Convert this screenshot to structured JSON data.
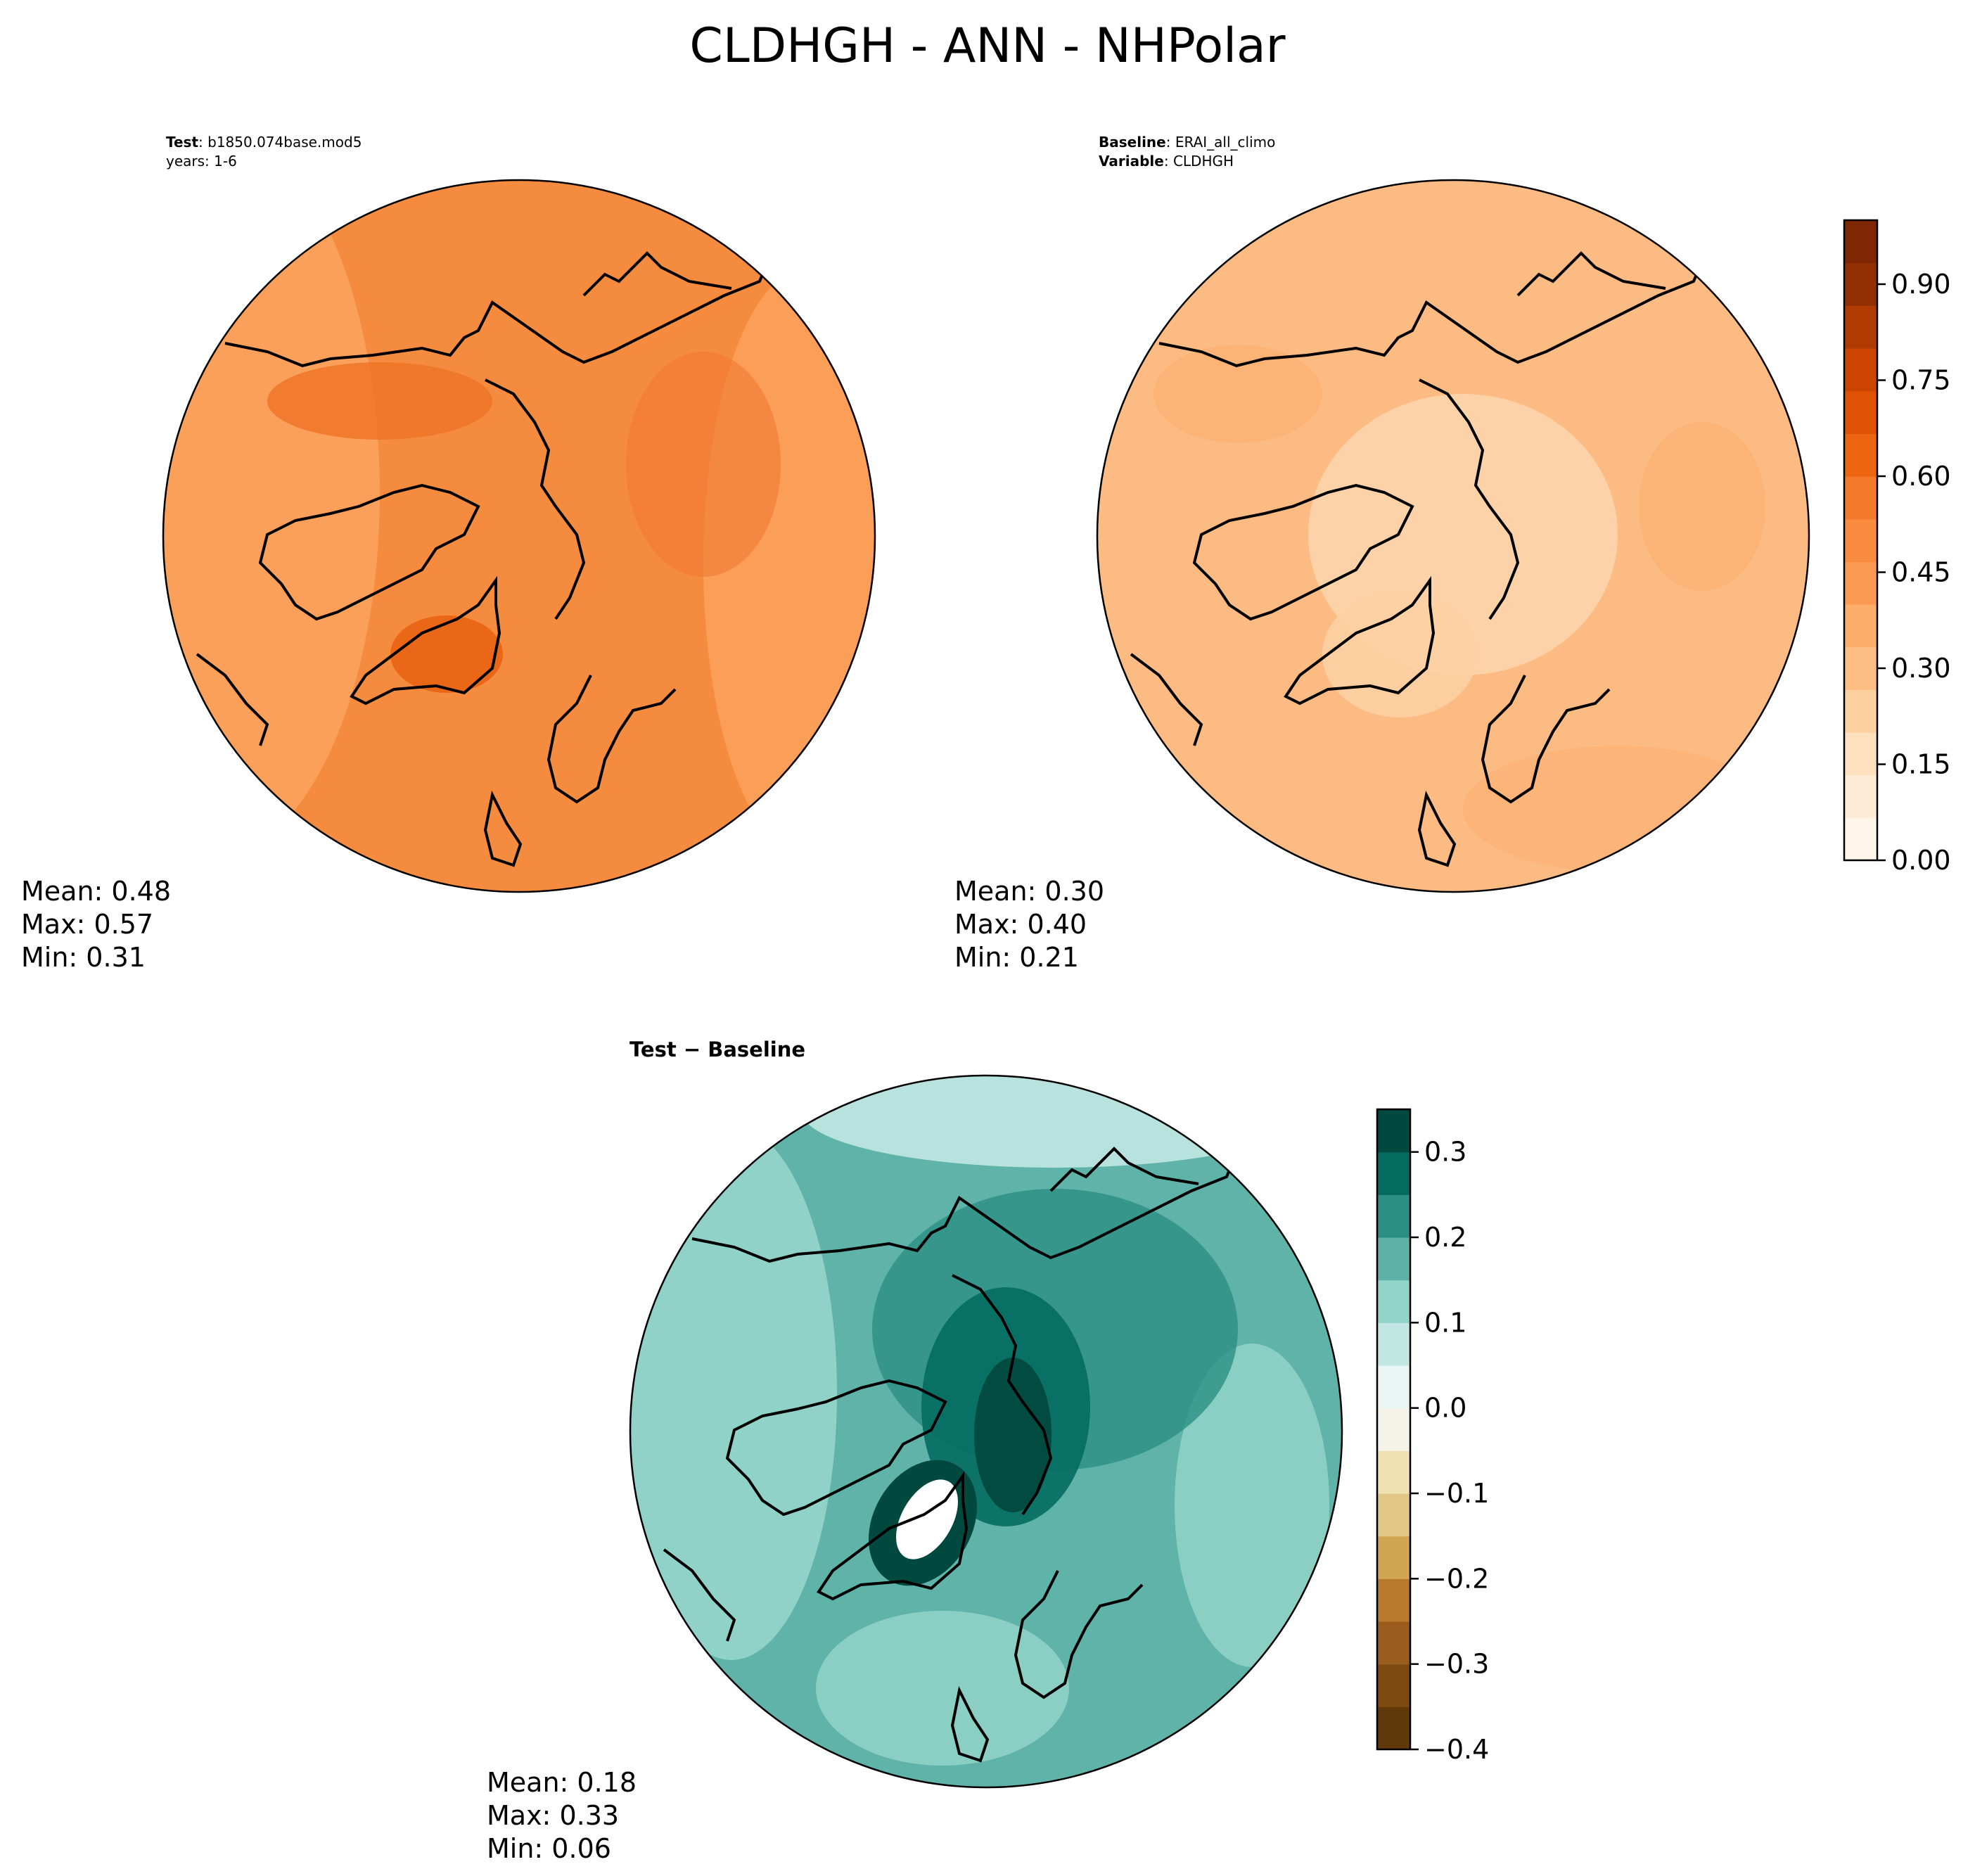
{
  "figure": {
    "title": "CLDHGH - ANN - NHPolar"
  },
  "panels": {
    "test": {
      "label": "Test",
      "sep": ": ",
      "name": "b1850.074base.mod5",
      "years": "years: 1-6",
      "mean": "Mean:  0.48",
      "max": "Max:  0.57",
      "min": "Min:  0.31",
      "fill_color": "#f58b3f"
    },
    "baseline": {
      "label": "Baseline",
      "sep": ": ",
      "name": "ERAI_all_climo",
      "var_label": "Variable",
      "var_name": "CLDHGH",
      "mean": "Mean:  0.30",
      "max": "Max:  0.40",
      "min": "Min:  0.21",
      "fill_color": "#fdbb84"
    },
    "diff": {
      "title_a": "Test",
      "title_op": " − ",
      "title_b": "Baseline",
      "mean": "Mean:  0.18",
      "max": "Max:  0.33",
      "min": "Min:  0.06",
      "fill_color": "#5fb3a8"
    }
  },
  "chart_data": [
    {
      "type": "heatmap",
      "title": "Test",
      "projection": "north polar stereographic",
      "variable": "CLDHGH",
      "stats": {
        "mean": 0.48,
        "max": 0.57,
        "min": 0.31
      }
    },
    {
      "type": "heatmap",
      "title": "Baseline",
      "projection": "north polar stereographic",
      "variable": "CLDHGH",
      "stats": {
        "mean": 0.3,
        "max": 0.4,
        "min": 0.21
      },
      "colorbar": {
        "range": [
          0.0,
          1.0
        ],
        "ticks": [
          0.0,
          0.15,
          0.3,
          0.45,
          0.6,
          0.75,
          0.9
        ],
        "tick_labels": [
          "0.00",
          "0.15",
          "0.30",
          "0.45",
          "0.60",
          "0.75",
          "0.90"
        ],
        "colors": [
          "#fff5eb",
          "#feebd6",
          "#fee0bf",
          "#fdd0a2",
          "#fdbe84",
          "#fdae6b",
          "#fd9a52",
          "#f98b3e",
          "#f4792a",
          "#ee6511",
          "#e05206",
          "#cc4402",
          "#b03b02",
          "#923003",
          "#7f2704"
        ]
      }
    },
    {
      "type": "heatmap",
      "title": "Test − Baseline",
      "projection": "north polar stereographic",
      "variable": "CLDHGH",
      "stats": {
        "mean": 0.18,
        "max": 0.33,
        "min": 0.06
      },
      "colorbar": {
        "range": [
          -0.4,
          0.35
        ],
        "ticks": [
          -0.4,
          -0.3,
          -0.2,
          -0.1,
          0.0,
          0.1,
          0.2,
          0.3
        ],
        "tick_labels": [
          "−0.4",
          "−0.3",
          "−0.2",
          "−0.1",
          "0.0",
          "0.1",
          "0.2",
          "0.3"
        ],
        "colors": [
          "#613a0c",
          "#7d4a10",
          "#9a5d1d",
          "#b8782e",
          "#d2a555",
          "#e2c886",
          "#f0e0b2",
          "#f5f2e8",
          "#e8f5f3",
          "#c2e7e2",
          "#93d4c9",
          "#5db1a6",
          "#2c8f85",
          "#046b60",
          "#01493f"
        ]
      }
    }
  ]
}
